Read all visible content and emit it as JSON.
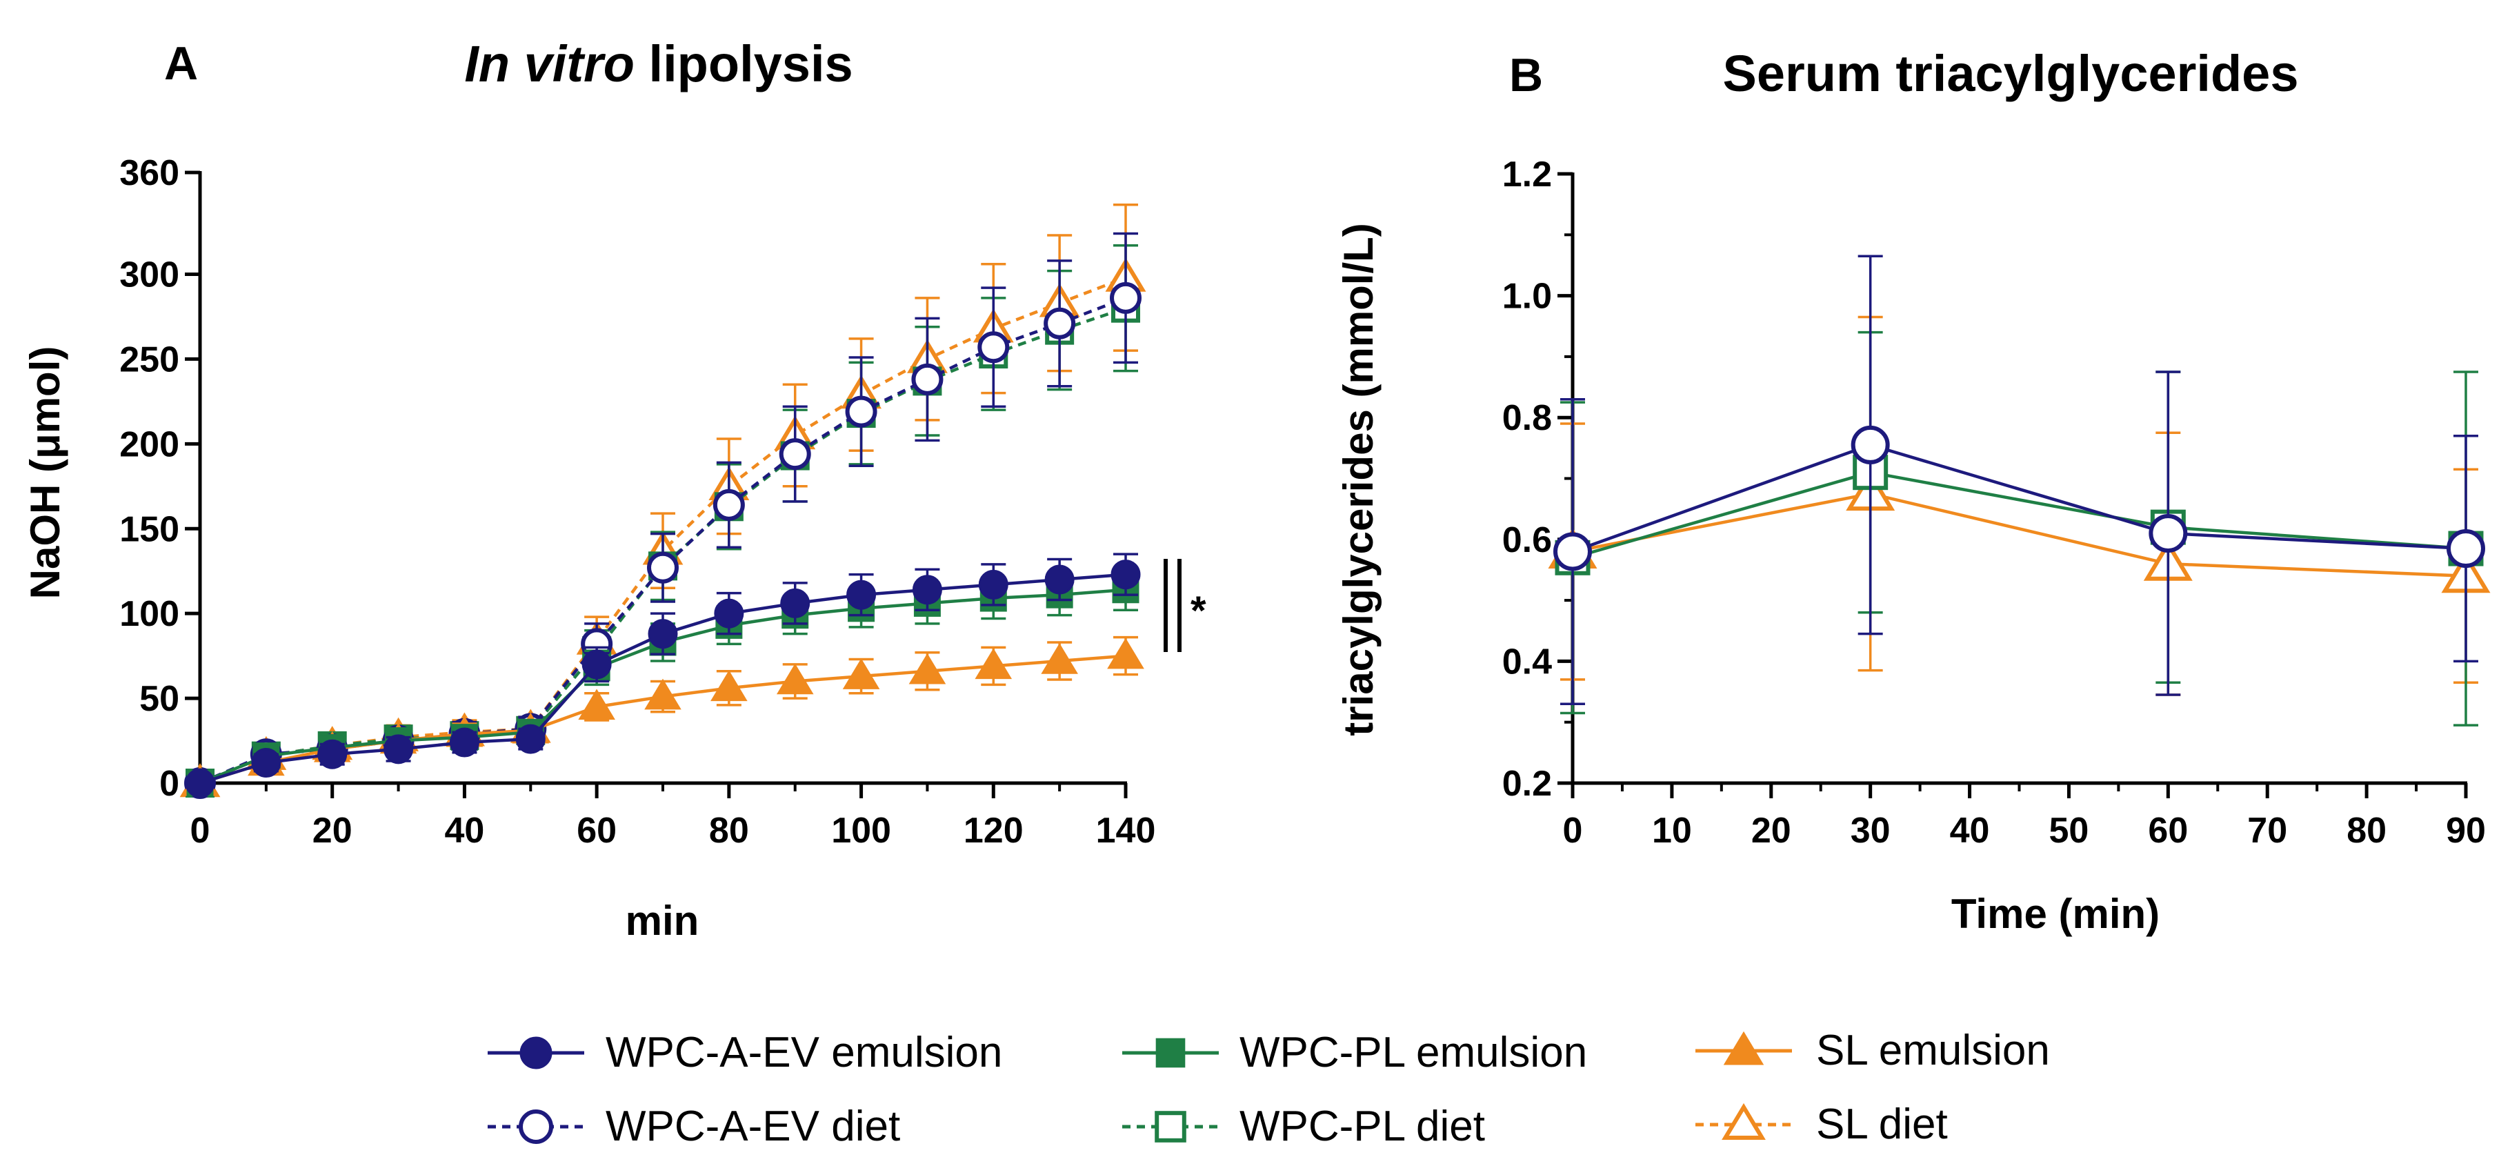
{
  "colors": {
    "navy": "#1d1a7d",
    "green": "#1f7f45",
    "orange": "#f08a1e",
    "axis": "#000000"
  },
  "legend": [
    {
      "label": "WPC-A-EV emulsion",
      "color": "#1d1a7d",
      "marker": "circle",
      "filled": true,
      "dashed": false
    },
    {
      "label": "WPC-PL emulsion",
      "color": "#1f7f45",
      "marker": "square",
      "filled": true,
      "dashed": false
    },
    {
      "label": "SL emulsion",
      "color": "#f08a1e",
      "marker": "triangle",
      "filled": true,
      "dashed": false
    },
    {
      "label": "WPC-A-EV diet",
      "color": "#1d1a7d",
      "marker": "circle",
      "filled": false,
      "dashed": true
    },
    {
      "label": "WPC-PL diet",
      "color": "#1f7f45",
      "marker": "square",
      "filled": false,
      "dashed": true
    },
    {
      "label": "SL diet",
      "color": "#f08a1e",
      "marker": "triangle",
      "filled": false,
      "dashed": true
    }
  ],
  "chart_data": [
    {
      "panel": "A",
      "type": "line",
      "title_italic": "In vitro",
      "title_rest": " lipolysis",
      "xlabel": "min",
      "ylabel": "NaOH (μmol)",
      "xlim": [
        0,
        140
      ],
      "ylim": [
        0,
        360
      ],
      "xticks": [
        0,
        20,
        40,
        60,
        80,
        100,
        120,
        140
      ],
      "yticks": [
        0,
        50,
        100,
        150,
        200,
        250,
        300,
        360
      ],
      "annotation": "*",
      "x": [
        0,
        10,
        20,
        30,
        40,
        50,
        60,
        70,
        80,
        90,
        100,
        110,
        120,
        130,
        140
      ],
      "series": [
        {
          "name": "WPC-A-EV emulsion",
          "values": [
            0,
            12,
            17,
            20,
            24,
            26,
            70,
            88,
            100,
            106,
            111,
            114,
            117,
            120,
            123
          ],
          "err": [
            0,
            5,
            6,
            7,
            6,
            6,
            10,
            12,
            12,
            12,
            12,
            12,
            12,
            12,
            12
          ]
        },
        {
          "name": "WPC-PL emulsion",
          "values": [
            0,
            16,
            21,
            25,
            27,
            30,
            68,
            83,
            93,
            99,
            103,
            106,
            109,
            111,
            114
          ],
          "err": [
            0,
            5,
            6,
            7,
            6,
            6,
            10,
            11,
            11,
            11,
            11,
            12,
            12,
            12,
            12
          ]
        },
        {
          "name": "SL emulsion",
          "values": [
            0,
            12,
            20,
            25,
            29,
            31,
            45,
            51,
            56,
            60,
            63,
            66,
            69,
            72,
            75
          ],
          "err": [
            0,
            5,
            6,
            6,
            6,
            6,
            8,
            9,
            10,
            10,
            10,
            11,
            11,
            11,
            11
          ]
        },
        {
          "name": "WPC-A-EV diet",
          "values": [
            0,
            17,
            20,
            25,
            29,
            32,
            82,
            127,
            164,
            194,
            219,
            238,
            257,
            271,
            286
          ],
          "err": [
            0,
            5,
            6,
            7,
            7,
            7,
            12,
            20,
            25,
            28,
            32,
            36,
            35,
            37,
            38
          ]
        },
        {
          "name": "WPC-PL diet",
          "values": [
            0,
            16,
            22,
            26,
            28,
            31,
            78,
            128,
            163,
            193,
            218,
            237,
            253,
            267,
            280
          ],
          "err": [
            0,
            5,
            6,
            7,
            7,
            7,
            12,
            20,
            25,
            27,
            30,
            32,
            33,
            35,
            37
          ]
        },
        {
          "name": "SL diet",
          "values": [
            0,
            16,
            22,
            27,
            30,
            32,
            84,
            137,
            175,
            205,
            229,
            250,
            268,
            283,
            298
          ],
          "err": [
            0,
            5,
            6,
            7,
            7,
            7,
            14,
            22,
            28,
            30,
            33,
            36,
            38,
            40,
            43
          ]
        }
      ]
    },
    {
      "panel": "B",
      "type": "line",
      "title": "Serum triacylglycerides",
      "xlabel": "Time (min)",
      "ylabel": "triacylglycerides (mmol/L)",
      "xlim": [
        0,
        90
      ],
      "ylim": [
        0.2,
        1.2
      ],
      "xticks": [
        0,
        10,
        20,
        30,
        40,
        50,
        60,
        70,
        80,
        90
      ],
      "yticks": [
        0.2,
        0.4,
        0.6,
        0.8,
        1.0,
        1.2
      ],
      "x": [
        0,
        30,
        60,
        90
      ],
      "series": [
        {
          "name": "WPC-A-EV emulsion",
          "values": [
            0.58,
            0.755,
            0.61,
            0.585
          ],
          "err": [
            0.25,
            0.31,
            0.265,
            0.185
          ]
        },
        {
          "name": "WPC-PL emulsion",
          "values": [
            0.57,
            0.71,
            0.62,
            0.585
          ],
          "err": [
            0.255,
            0.23,
            0.255,
            0.29
          ]
        },
        {
          "name": "SL emulsion",
          "values": [
            0.58,
            0.675,
            0.56,
            0.54
          ],
          "err": [
            0.21,
            0.29,
            0.215,
            0.175
          ]
        }
      ]
    }
  ]
}
